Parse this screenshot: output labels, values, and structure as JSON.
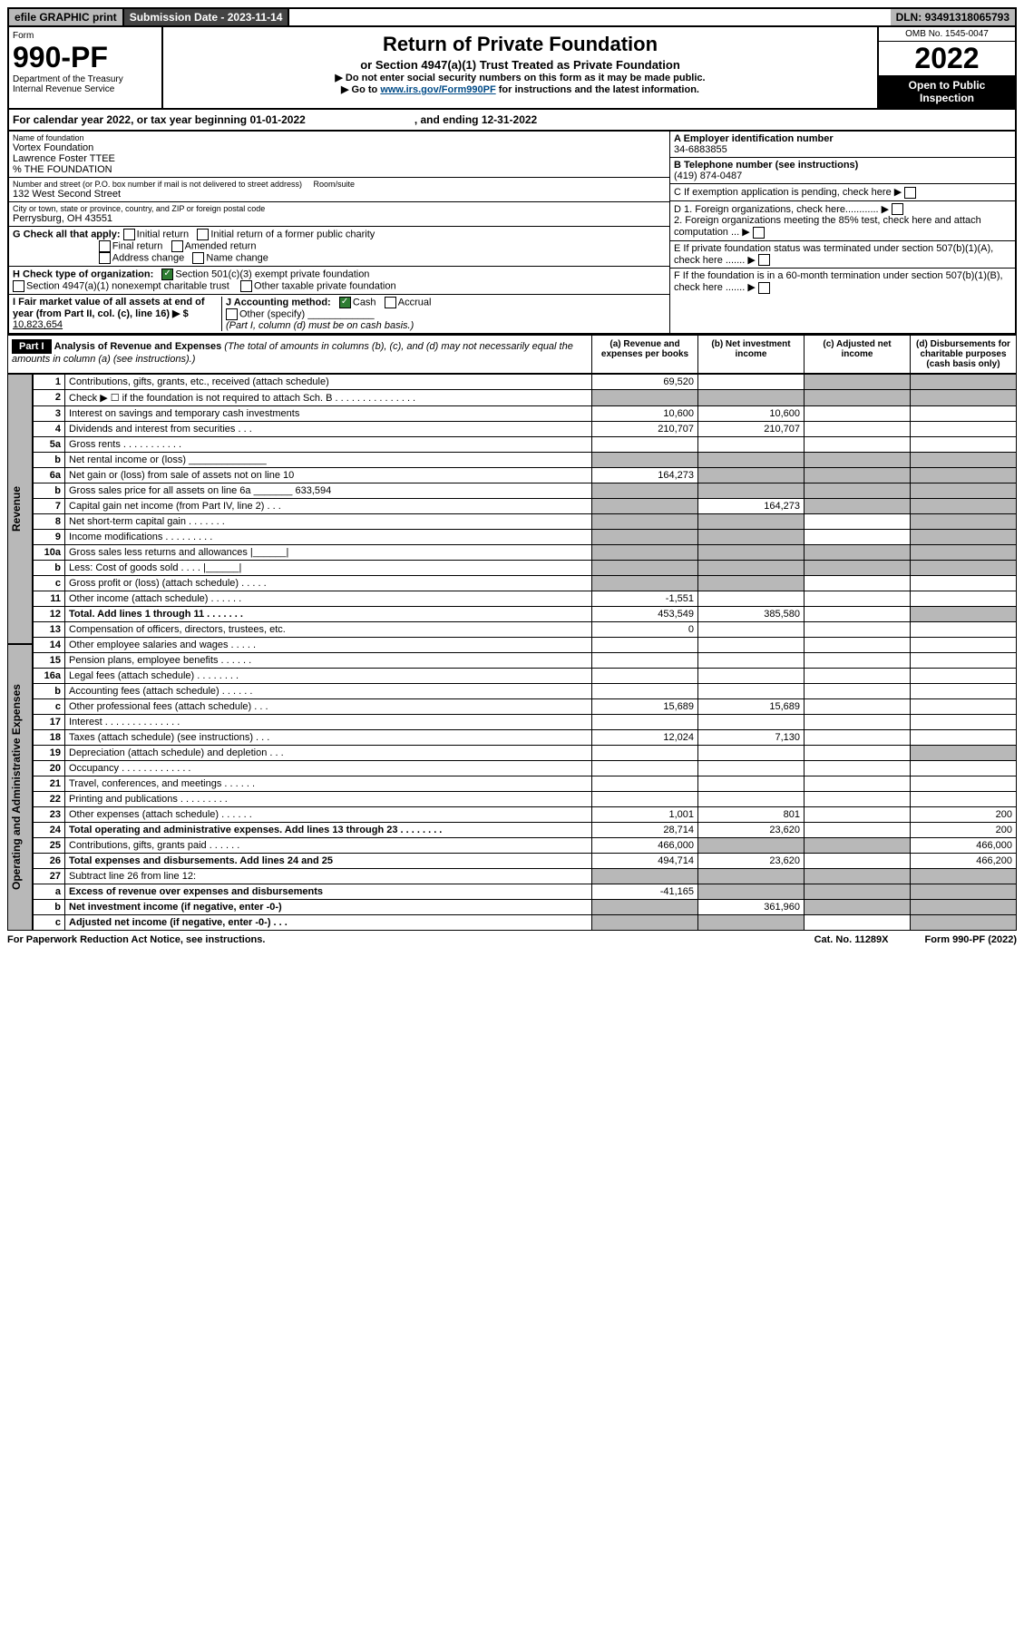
{
  "topbar": {
    "efile": "efile GRAPHIC print",
    "sub_label": "Submission Date - ",
    "sub_date": "2023-11-14",
    "dln_label": "DLN: ",
    "dln": "93491318065793"
  },
  "header": {
    "form": "Form",
    "num": "990-PF",
    "dept": "Department of the Treasury\nInternal Revenue Service",
    "title": "Return of Private Foundation",
    "subtitle": "or Section 4947(a)(1) Trust Treated as Private Foundation",
    "note1": "▶ Do not enter social security numbers on this form as it may be made public.",
    "note2_pre": "▶ Go to ",
    "note2_link": "www.irs.gov/Form990PF",
    "note2_post": " for instructions and the latest information.",
    "omb": "OMB No. 1545-0047",
    "year": "2022",
    "open": "Open to Public Inspection"
  },
  "cal": {
    "text": "For calendar year 2022, or tax year beginning 01-01-2022",
    "end": ", and ending 12-31-2022"
  },
  "entity": {
    "name_lbl": "Name of foundation",
    "name": "Vortex Foundation\nLawrence Foster TTEE\n% THE FOUNDATION",
    "addr_lbl": "Number and street (or P.O. box number if mail is not delivered to street address)",
    "room_lbl": "Room/suite",
    "addr": "132 West Second Street",
    "city_lbl": "City or town, state or province, country, and ZIP or foreign postal code",
    "city": "Perrysburg, OH  43551"
  },
  "right": {
    "A_lbl": "A Employer identification number",
    "A": "34-6883855",
    "B_lbl": "B Telephone number (see instructions)",
    "B": "(419) 874-0487",
    "C": "C If exemption application is pending, check here ▶",
    "D1": "D 1. Foreign organizations, check here............ ▶",
    "D2": "2. Foreign organizations meeting the 85% test, check here and attach computation ...  ▶",
    "E": "E  If private foundation status was terminated under section 507(b)(1)(A), check here ....... ▶",
    "F": "F  If the foundation is in a 60-month termination under section 507(b)(1)(B), check here ....... ▶"
  },
  "G": {
    "lbl": "G Check all that apply:",
    "opts": [
      "Initial return",
      "Final return",
      "Address change",
      "Initial return of a former public charity",
      "Amended return",
      "Name change"
    ]
  },
  "H": {
    "lbl": "H Check type of organization:",
    "opt1": "Section 501(c)(3) exempt private foundation",
    "opt2": "Section 4947(a)(1) nonexempt charitable trust",
    "opt3": "Other taxable private foundation"
  },
  "I": {
    "lbl": "I Fair market value of all assets at end of year (from Part II, col. (c), line 16) ▶ $",
    "val": "10,823,654"
  },
  "J": {
    "lbl": "J Accounting method:",
    "opt1": "Cash",
    "opt2": "Accrual",
    "opt3": "Other (specify)",
    "note": "(Part I, column (d) must be on cash basis.)"
  },
  "part1": {
    "label": "Part I",
    "title": "Analysis of Revenue and Expenses",
    "note": "(The total of amounts in columns (b), (c), and (d) may not necessarily equal the amounts in column (a) (see instructions).)",
    "cols": [
      "(a)  Revenue and expenses per books",
      "(b)  Net investment income",
      "(c)  Adjusted net income",
      "(d)  Disbursements for charitable purposes (cash basis only)"
    ]
  },
  "side": {
    "rev": "Revenue",
    "exp": "Operating and Administrative Expenses"
  },
  "rows": [
    {
      "n": "1",
      "d": "Contributions, gifts, grants, etc., received (attach schedule)",
      "a": "69,520",
      "cg": true,
      "dg": true
    },
    {
      "n": "2",
      "d": "Check ▶ ☐ if the foundation is not required to attach Sch. B   .  .  .  .  .  .  .  .  .  .  .  .  .  .  .",
      "ag": true,
      "bg": true,
      "cg": true,
      "dg": true
    },
    {
      "n": "3",
      "d": "Interest on savings and temporary cash investments",
      "a": "10,600",
      "b": "10,600"
    },
    {
      "n": "4",
      "d": "Dividends and interest from securities  .  .  .",
      "a": "210,707",
      "b": "210,707"
    },
    {
      "n": "5a",
      "d": "Gross rents  .  .  .  .  .  .  .  .  .  .  ."
    },
    {
      "n": "b",
      "d": "Net rental income or (loss)  ______________",
      "ag": true,
      "bg": true,
      "cg": true,
      "dg": true
    },
    {
      "n": "6a",
      "d": "Net gain or (loss) from sale of assets not on line 10",
      "a": "164,273",
      "bg": true,
      "cg": true,
      "dg": true
    },
    {
      "n": "b",
      "d": "Gross sales price for all assets on line 6a _______ 633,594",
      "ag": true,
      "bg": true,
      "cg": true,
      "dg": true
    },
    {
      "n": "7",
      "d": "Capital gain net income (from Part IV, line 2)  .  .  .",
      "ag": true,
      "b": "164,273",
      "cg": true,
      "dg": true
    },
    {
      "n": "8",
      "d": "Net short-term capital gain  .  .  .  .  .  .  .",
      "ag": true,
      "bg": true,
      "dg": true
    },
    {
      "n": "9",
      "d": "Income modifications  .  .  .  .  .  .  .  .  .",
      "ag": true,
      "bg": true,
      "dg": true
    },
    {
      "n": "10a",
      "d": "Gross sales less returns and allowances  |______|",
      "ag": true,
      "bg": true,
      "cg": true,
      "dg": true
    },
    {
      "n": "b",
      "d": "Less: Cost of goods sold  .  .  .  .  |______|",
      "ag": true,
      "bg": true,
      "cg": true,
      "dg": true
    },
    {
      "n": "c",
      "d": "Gross profit or (loss) (attach schedule)  .  .  .  .  .",
      "ag": true,
      "bg": true
    },
    {
      "n": "11",
      "d": "Other income (attach schedule)  .  .  .  .  .  .",
      "a": "-1,551"
    },
    {
      "n": "12",
      "d": "Total. Add lines 1 through 11  .  .  .  .  .  .  .",
      "bold": true,
      "a": "453,549",
      "b": "385,580",
      "dg": true
    },
    {
      "n": "13",
      "d": "Compensation of officers, directors, trustees, etc.",
      "a": "0"
    },
    {
      "n": "14",
      "d": "Other employee salaries and wages  .  .  .  .  ."
    },
    {
      "n": "15",
      "d": "Pension plans, employee benefits  .  .  .  .  .  ."
    },
    {
      "n": "16a",
      "d": "Legal fees (attach schedule)  .  .  .  .  .  .  .  ."
    },
    {
      "n": "b",
      "d": "Accounting fees (attach schedule)  .  .  .  .  .  ."
    },
    {
      "n": "c",
      "d": "Other professional fees (attach schedule)  .  .  .",
      "a": "15,689",
      "b": "15,689"
    },
    {
      "n": "17",
      "d": "Interest  .  .  .  .  .  .  .  .  .  .  .  .  .  ."
    },
    {
      "n": "18",
      "d": "Taxes (attach schedule) (see instructions)  .  .  .",
      "a": "12,024",
      "b": "7,130"
    },
    {
      "n": "19",
      "d": "Depreciation (attach schedule) and depletion  .  .  .",
      "dg": true
    },
    {
      "n": "20",
      "d": "Occupancy  .  .  .  .  .  .  .  .  .  .  .  .  ."
    },
    {
      "n": "21",
      "d": "Travel, conferences, and meetings  .  .  .  .  .  ."
    },
    {
      "n": "22",
      "d": "Printing and publications  .  .  .  .  .  .  .  .  ."
    },
    {
      "n": "23",
      "d": "Other expenses (attach schedule)  .  .  .  .  .  .",
      "a": "1,001",
      "b": "801",
      "dd": "200"
    },
    {
      "n": "24",
      "d": "Total operating and administrative expenses. Add lines 13 through 23  .  .  .  .  .  .  .  .",
      "bold": true,
      "a": "28,714",
      "b": "23,620",
      "dd": "200"
    },
    {
      "n": "25",
      "d": "Contributions, gifts, grants paid  .  .  .  .  .  .",
      "a": "466,000",
      "bg": true,
      "cg": true,
      "dd": "466,000"
    },
    {
      "n": "26",
      "d": "Total expenses and disbursements. Add lines 24 and 25",
      "bold": true,
      "a": "494,714",
      "b": "23,620",
      "dd": "466,200"
    },
    {
      "n": "27",
      "d": "Subtract line 26 from line 12:",
      "ag": true,
      "bg": true,
      "cg": true,
      "dg": true
    },
    {
      "n": "a",
      "d": "Excess of revenue over expenses and disbursements",
      "bold": true,
      "a": "-41,165",
      "bg": true,
      "cg": true,
      "dg": true
    },
    {
      "n": "b",
      "d": "Net investment income (if negative, enter -0-)",
      "bold": true,
      "ag": true,
      "b": "361,960",
      "cg": true,
      "dg": true
    },
    {
      "n": "c",
      "d": "Adjusted net income (if negative, enter -0-)  .  .  .",
      "bold": true,
      "ag": true,
      "bg": true,
      "dg": true
    }
  ],
  "footer": {
    "l": "For Paperwork Reduction Act Notice, see instructions.",
    "m": "Cat. No. 11289X",
    "r": "Form 990-PF (2022)"
  }
}
